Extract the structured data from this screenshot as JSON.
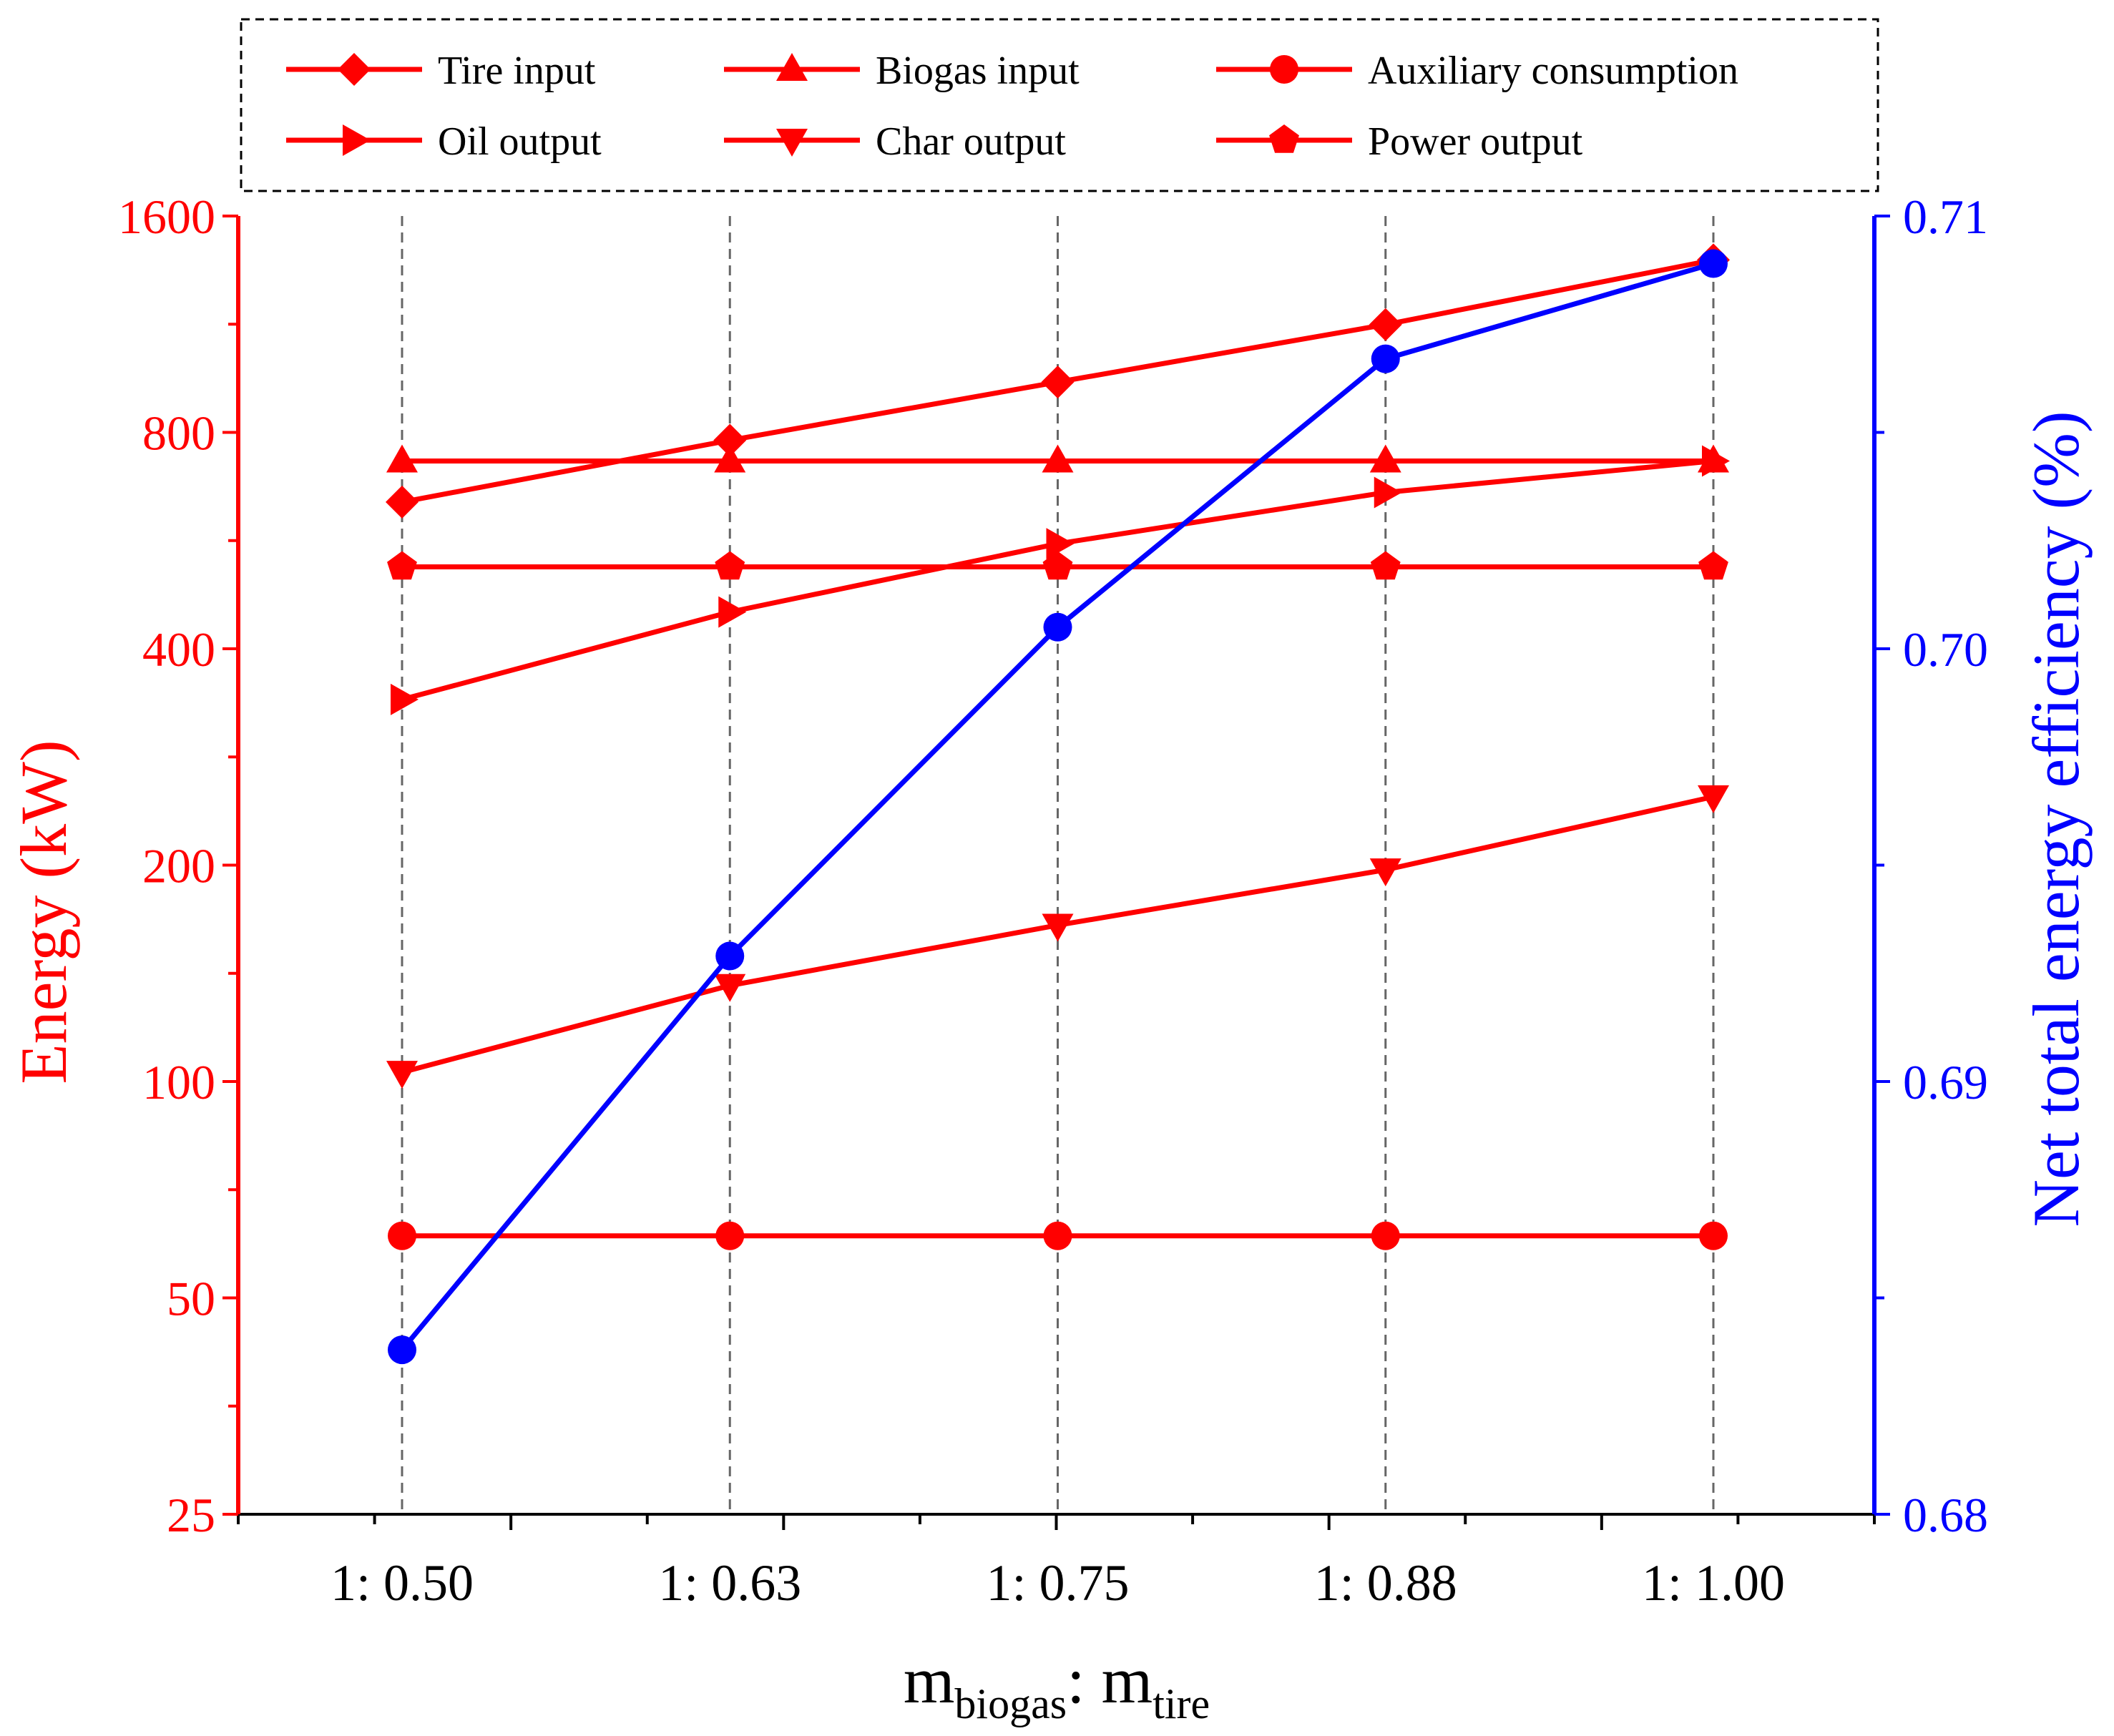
{
  "chart_data": {
    "type": "line",
    "categories": [
      "1: 0.50",
      "1: 0.63",
      "1: 0.75",
      "1: 0.88",
      "1: 1.00"
    ],
    "left_axis": {
      "label": "Energy (kW)",
      "scale": "log2",
      "ticks": [
        25,
        50,
        100,
        200,
        400,
        800,
        1600
      ],
      "tick_labels": [
        "25",
        "50",
        "100",
        "200",
        "400",
        "800",
        "1600"
      ],
      "range": [
        25,
        1600
      ],
      "color": "#ff0000"
    },
    "right_axis": {
      "label": "Net total energy efficiency (%)",
      "scale": "linear",
      "ticks": [
        0.68,
        0.69,
        0.7,
        0.71
      ],
      "tick_labels": [
        "0.68",
        "0.69",
        "0.70",
        "0.71"
      ],
      "range": [
        0.68,
        0.71
      ],
      "color": "#0000ff"
    },
    "x_label": {
      "base1": "m",
      "sub1": "biogas",
      "sep": ": ",
      "base2": "m",
      "sub2": "tire"
    },
    "series": [
      {
        "name": "Tire input",
        "marker": "diamond",
        "axis": "left",
        "color": "#ff0000",
        "values": [
          640,
          780,
          940,
          1130,
          1390
        ]
      },
      {
        "name": "Biogas input",
        "marker": "triangle-up",
        "axis": "left",
        "color": "#ff0000",
        "values": [
          730,
          730,
          730,
          730,
          730
        ]
      },
      {
        "name": "Auxiliary consumption",
        "marker": "circle",
        "axis": "left",
        "color": "#ff0000",
        "values": [
          61,
          61,
          61,
          61,
          61
        ]
      },
      {
        "name": "Oil output",
        "marker": "triangle-right",
        "axis": "left",
        "color": "#ff0000",
        "values": [
          340,
          450,
          560,
          660,
          730
        ]
      },
      {
        "name": "Char output",
        "marker": "triangle-down",
        "axis": "left",
        "color": "#ff0000",
        "values": [
          103,
          136,
          165,
          197,
          249
        ]
      },
      {
        "name": "Power output",
        "marker": "pentagon",
        "axis": "left",
        "color": "#ff0000",
        "values": [
          520,
          520,
          520,
          520,
          520
        ]
      },
      {
        "name": "Net total energy efficiency",
        "marker": "circle",
        "axis": "right",
        "color": "#0000ff",
        "values": [
          0.6838,
          0.6929,
          0.7005,
          0.7067,
          0.7089
        ]
      }
    ],
    "legend": {
      "placement": "top",
      "items": [
        "Tire input",
        "Biogas input",
        "Auxiliary consumption",
        "Oil output",
        "Char output",
        "Power output"
      ]
    },
    "grid": "vertical-dashed"
  }
}
